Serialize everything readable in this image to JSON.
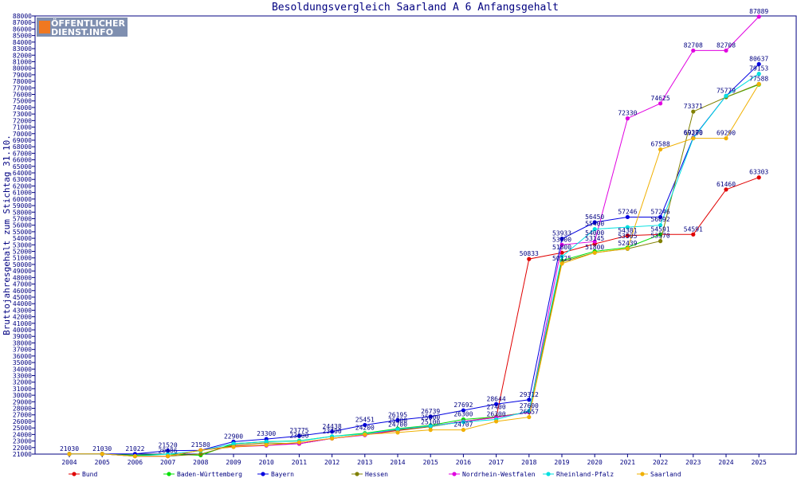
{
  "logo": {
    "line1": "ÖFFENTLICHER",
    "line2": "DIENST.INFO"
  },
  "chart_data": {
    "type": "line",
    "title": "Besoldungsvergleich Saarland A 6 Anfangsgehalt",
    "xlabel": "",
    "ylabel": "Bruttojahresgehalt zum Stichtag 31.10.",
    "ylim": [
      21000,
      88000
    ],
    "ystep": 1000,
    "grid": false,
    "legend_position": "bottom",
    "categories": [
      "2004",
      "2005",
      "2006",
      "2007",
      "2008",
      "2009",
      "2010",
      "2011",
      "2012",
      "2013",
      "2014",
      "2015",
      "2016",
      "2017",
      "2018",
      "2019",
      "2020",
      "2021",
      "2022",
      "2023",
      "2024",
      "2025"
    ],
    "series": [
      {
        "name": "Bund",
        "color": "#e00000",
        "values": [
          21030,
          21030,
          20686,
          20686,
          21600,
          22200,
          22400,
          22600,
          23400,
          23950,
          24600,
          25200,
          26000,
          26600,
          50833,
          51800,
          53145,
          54400,
          54591,
          54591,
          61460,
          63303
        ]
      },
      {
        "name": "Baden-Württemberg",
        "color": "#00e000",
        "values": [
          21030,
          21030,
          20822,
          21000,
          20822,
          22600,
          22900,
          23050,
          23700,
          24200,
          24900,
          25400,
          26300,
          26700,
          27400,
          50600,
          52000,
          52600,
          54591,
          null,
          75579,
          77508
        ]
      },
      {
        "name": "Bayern",
        "color": "#0000e0",
        "values": [
          21030,
          21030,
          21022,
          21520,
          21580,
          22900,
          23300,
          23775,
          24438,
          25451,
          26195,
          26739,
          27692,
          28644,
          29312,
          53933,
          56450,
          57246,
          57246,
          69370,
          75779,
          80637
        ]
      },
      {
        "name": "Hessen",
        "color": "#808000",
        "values": [
          21030,
          21030,
          20686,
          20686,
          21000,
          22400,
          22700,
          22600,
          23400,
          24000,
          24700,
          25200,
          26000,
          26700,
          27400,
          50400,
          51800,
          52400,
          53570,
          73371,
          75579,
          77588
        ]
      },
      {
        "name": "Nordrhein-Westfalen",
        "color": "#e000e0",
        "values": [
          21030,
          21030,
          20686,
          20686,
          21600,
          22100,
          22300,
          22600,
          23400,
          23900,
          24800,
          25300,
          26000,
          26600,
          27400,
          53000,
          53500,
          72330,
          74625,
          82708,
          82708,
          87889
        ]
      },
      {
        "name": "Rheinland-Pfalz",
        "color": "#00e0e0",
        "values": [
          21030,
          21030,
          20686,
          21000,
          21500,
          22600,
          22900,
          23000,
          23700,
          24100,
          24800,
          25300,
          25900,
          26300,
          27600,
          51200,
          55400,
          55700,
          56000,
          69290,
          75779,
          79153
        ]
      },
      {
        "name": "Saarland",
        "color": "#f0b000",
        "values": [
          21030,
          21030,
          20686,
          20686,
          21600,
          22100,
          22400,
          22800,
          23400,
          24000,
          24300,
          24700,
          24707,
          26000,
          26657,
          50125,
          51800,
          52439,
          67588,
          69290,
          69290,
          77588
        ]
      }
    ],
    "data_labels": [
      {
        "x": "2004",
        "value": 21030,
        "text": "21030"
      },
      {
        "x": "2005",
        "value": 21030,
        "text": "21030"
      },
      {
        "x": "2006",
        "value": 21022,
        "text": "21022"
      },
      {
        "x": "2007",
        "value": 21520,
        "text": "21520"
      },
      {
        "x": "2007",
        "value": 20686,
        "text": "20686"
      },
      {
        "x": "2008",
        "value": 21580,
        "text": "21580"
      },
      {
        "x": "2009",
        "value": 22900,
        "text": "22900"
      },
      {
        "x": "2010",
        "value": 23300,
        "text": "23300"
      },
      {
        "x": "2011",
        "value": 23775,
        "text": "23775"
      },
      {
        "x": "2011",
        "value": 23000,
        "text": "23000"
      },
      {
        "x": "2012",
        "value": 24438,
        "text": "24438"
      },
      {
        "x": "2012",
        "value": 23700,
        "text": "23700"
      },
      {
        "x": "2013",
        "value": 25451,
        "text": "25451"
      },
      {
        "x": "2013",
        "value": 24200,
        "text": "24200"
      },
      {
        "x": "2014",
        "value": 26195,
        "text": "26195"
      },
      {
        "x": "2014",
        "value": 25300,
        "text": "25300"
      },
      {
        "x": "2014",
        "value": 24700,
        "text": "24700"
      },
      {
        "x": "2015",
        "value": 26739,
        "text": "26739"
      },
      {
        "x": "2015",
        "value": 25800,
        "text": "25800"
      },
      {
        "x": "2015",
        "value": 25100,
        "text": "25100"
      },
      {
        "x": "2016",
        "value": 27692,
        "text": "27692"
      },
      {
        "x": "2016",
        "value": 26300,
        "text": "26300"
      },
      {
        "x": "2016",
        "value": 24707,
        "text": "24707"
      },
      {
        "x": "2017",
        "value": 28644,
        "text": "28644"
      },
      {
        "x": "2017",
        "value": 27400,
        "text": "27400"
      },
      {
        "x": "2017",
        "value": 26300,
        "text": "26300"
      },
      {
        "x": "2018",
        "value": 29312,
        "text": "29312"
      },
      {
        "x": "2018",
        "value": 27600,
        "text": "27600"
      },
      {
        "x": "2018",
        "value": 26657,
        "text": "26657"
      },
      {
        "x": "2018",
        "value": 50833,
        "text": "50833"
      },
      {
        "x": "2019",
        "value": 53933,
        "text": "53933"
      },
      {
        "x": "2019",
        "value": 53000,
        "text": "53000"
      },
      {
        "x": "2019",
        "value": 51800,
        "text": "51800"
      },
      {
        "x": "2019",
        "value": 50125,
        "text": "50125"
      },
      {
        "x": "2020",
        "value": 56450,
        "text": "56450"
      },
      {
        "x": "2020",
        "value": 55400,
        "text": "55400"
      },
      {
        "x": "2020",
        "value": 54000,
        "text": "54000"
      },
      {
        "x": "2020",
        "value": 53145,
        "text": "53145"
      },
      {
        "x": "2020",
        "value": 51800,
        "text": "51800"
      },
      {
        "x": "2021",
        "value": 72330,
        "text": "72330"
      },
      {
        "x": "2021",
        "value": 57246,
        "text": "57246"
      },
      {
        "x": "2021",
        "value": 54381,
        "text": "54381"
      },
      {
        "x": "2021",
        "value": 53505,
        "text": "53505"
      },
      {
        "x": "2021",
        "value": 52439,
        "text": "52439"
      },
      {
        "x": "2022",
        "value": 74625,
        "text": "74625"
      },
      {
        "x": "2022",
        "value": 67588,
        "text": "67588"
      },
      {
        "x": "2022",
        "value": 57246,
        "text": "57246"
      },
      {
        "x": "2022",
        "value": 56092,
        "text": "56092"
      },
      {
        "x": "2022",
        "value": 54591,
        "text": "54591"
      },
      {
        "x": "2022",
        "value": 53570,
        "text": "53570"
      },
      {
        "x": "2023",
        "value": 82708,
        "text": "82708"
      },
      {
        "x": "2023",
        "value": 73371,
        "text": "73371"
      },
      {
        "x": "2023",
        "value": 69370,
        "text": "69370"
      },
      {
        "x": "2023",
        "value": 69290,
        "text": "69290"
      },
      {
        "x": "2023",
        "value": 54591,
        "text": "54591"
      },
      {
        "x": "2024",
        "value": 82708,
        "text": "82708"
      },
      {
        "x": "2024",
        "value": 75779,
        "text": "75779"
      },
      {
        "x": "2024",
        "value": 69290,
        "text": "69290"
      },
      {
        "x": "2024",
        "value": 61460,
        "text": "61460"
      },
      {
        "x": "2025",
        "value": 87889,
        "text": "87889"
      },
      {
        "x": "2025",
        "value": 80637,
        "text": "80637"
      },
      {
        "x": "2025",
        "value": 79153,
        "text": "79153"
      },
      {
        "x": "2025",
        "value": 77588,
        "text": "77588"
      },
      {
        "x": "2025",
        "value": 63303,
        "text": "63303"
      }
    ]
  }
}
